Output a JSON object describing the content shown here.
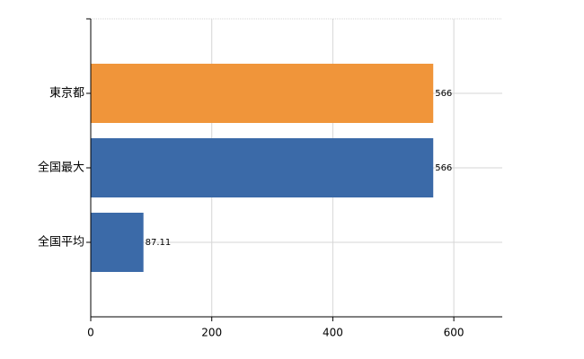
{
  "chart_data": {
    "type": "barh",
    "categories": [
      "東京都",
      "全国最大",
      "全国平均"
    ],
    "values": [
      566,
      566,
      87.11
    ],
    "colors": [
      "#f0953a",
      "#3b6aa8",
      "#3b6aa8"
    ],
    "xlim": [
      0,
      680
    ],
    "xticks": [
      0,
      200,
      400,
      600
    ],
    "grid": true
  }
}
